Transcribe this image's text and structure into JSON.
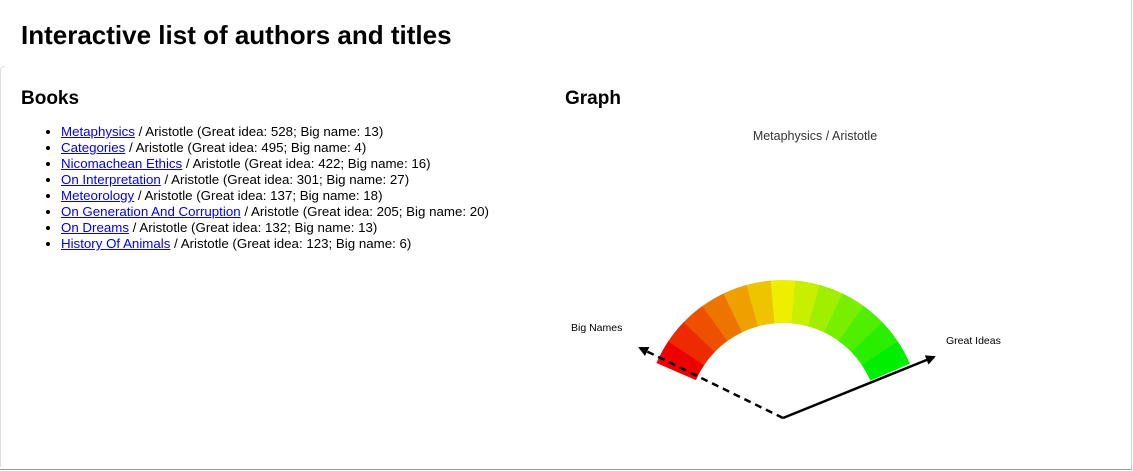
{
  "page_title": "Interactive list of authors and titles",
  "books_heading": "Books",
  "graph_heading": "Graph",
  "books": [
    {
      "title": "Metaphysics",
      "rest": " / Aristotle (Great idea: 528; Big name: 13)"
    },
    {
      "title": "Categories",
      "rest": " / Aristotle (Great idea: 495; Big name: 4)"
    },
    {
      "title": "Nicomachean Ethics",
      "rest": " / Aristotle (Great idea: 422; Big name: 16)"
    },
    {
      "title": "On Interpretation",
      "rest": " / Aristotle (Great idea: 301; Big name: 27)"
    },
    {
      "title": "Meteorology",
      "rest": " / Aristotle (Great idea: 137; Big name: 18)"
    },
    {
      "title": "On Generation And Corruption",
      "rest": " / Aristotle (Great idea: 205; Big name: 20)"
    },
    {
      "title": "On Dreams",
      "rest": " / Aristotle (Great idea: 132; Big name: 13)"
    },
    {
      "title": "History Of Animals",
      "rest": " / Aristotle (Great idea: 123; Big name: 6)"
    }
  ],
  "chart_data": {
    "type": "gauge",
    "title": "Metaphysics / Aristotle",
    "left_label": "Big Names",
    "right_label": "Great Ideas",
    "values": {
      "great_idea": 528,
      "big_name": 13
    },
    "segment_colors": [
      "#ee0000",
      "#ee2a00",
      "#ee5000",
      "#ee7400",
      "#eea000",
      "#eec400",
      "#eeee00",
      "#c8ee00",
      "#a0ee00",
      "#78ee00",
      "#50ee00",
      "#28ee00",
      "#00ee00"
    ]
  }
}
